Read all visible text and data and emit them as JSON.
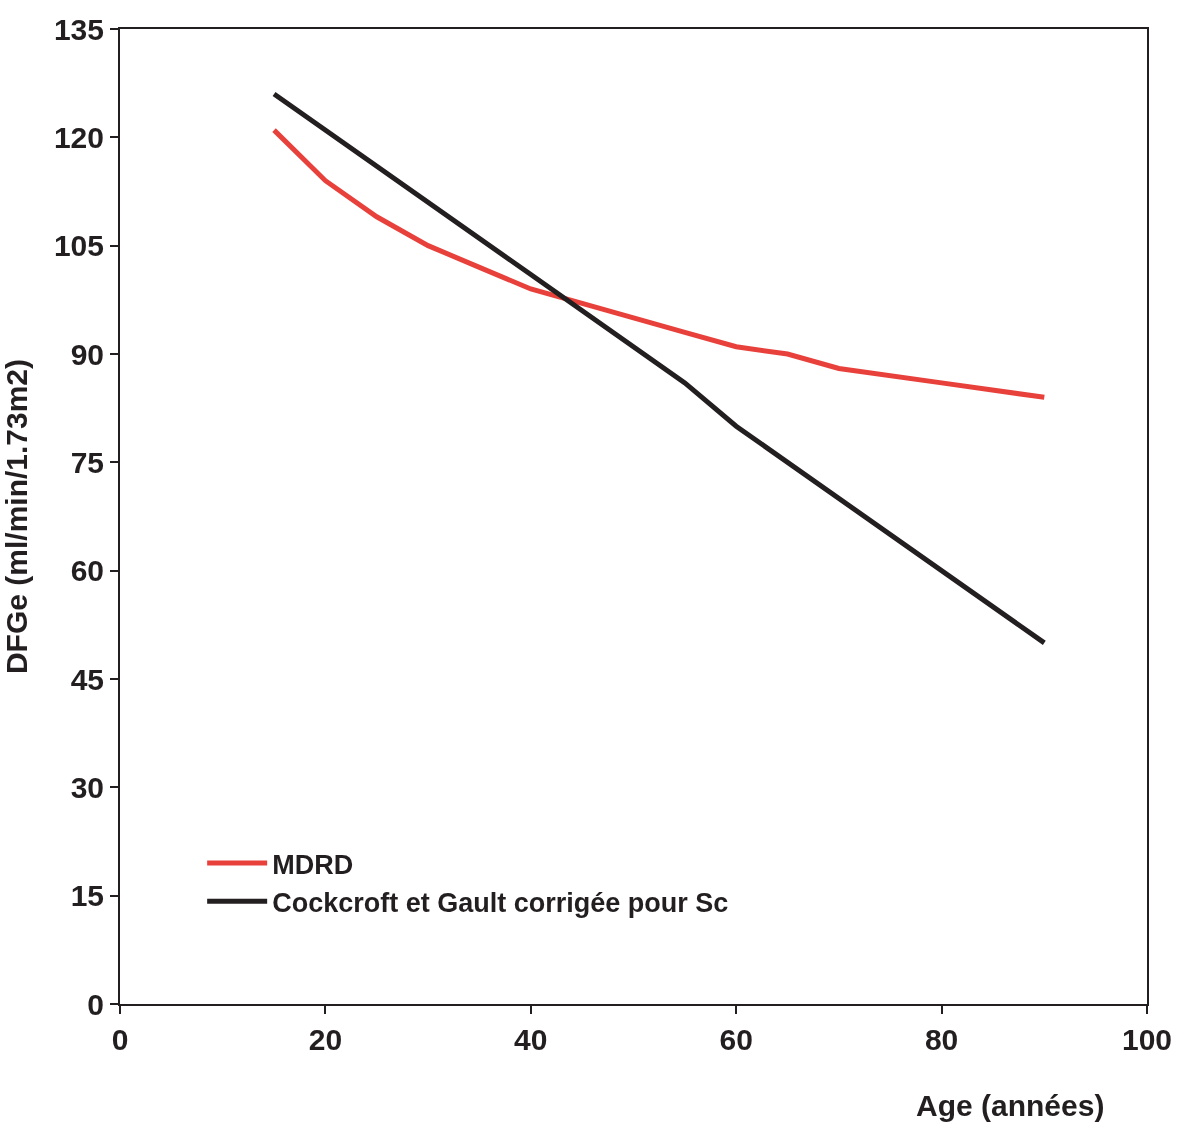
{
  "chart_data": {
    "type": "line",
    "xlabel": "Age (années)",
    "ylabel": "DFGe (ml/min/1.73m2)",
    "xlim": [
      0,
      100
    ],
    "xticks": [
      0,
      20,
      40,
      60,
      80,
      100
    ],
    "ylim": [
      0,
      135
    ],
    "yticks": [
      0,
      15,
      30,
      45,
      60,
      75,
      90,
      105,
      120,
      135
    ],
    "legend": "bottom left",
    "marker": "none",
    "line_style": "solid",
    "series": [
      {
        "name": "MDRD",
        "color": "#e8413c",
        "x": [
          15,
          20,
          25,
          30,
          35,
          40,
          45,
          50,
          55,
          60,
          65,
          70,
          80,
          90
        ],
        "values": [
          121,
          114,
          109,
          105,
          102,
          99,
          97,
          95,
          93,
          91,
          90,
          88,
          86,
          84
        ]
      },
      {
        "name": "Cockcroft et Gault corrigée pour Sc",
        "color": "#231f20",
        "x": [
          15,
          40,
          55,
          60,
          90
        ],
        "values": [
          126,
          101,
          86,
          80,
          50
        ]
      }
    ]
  }
}
